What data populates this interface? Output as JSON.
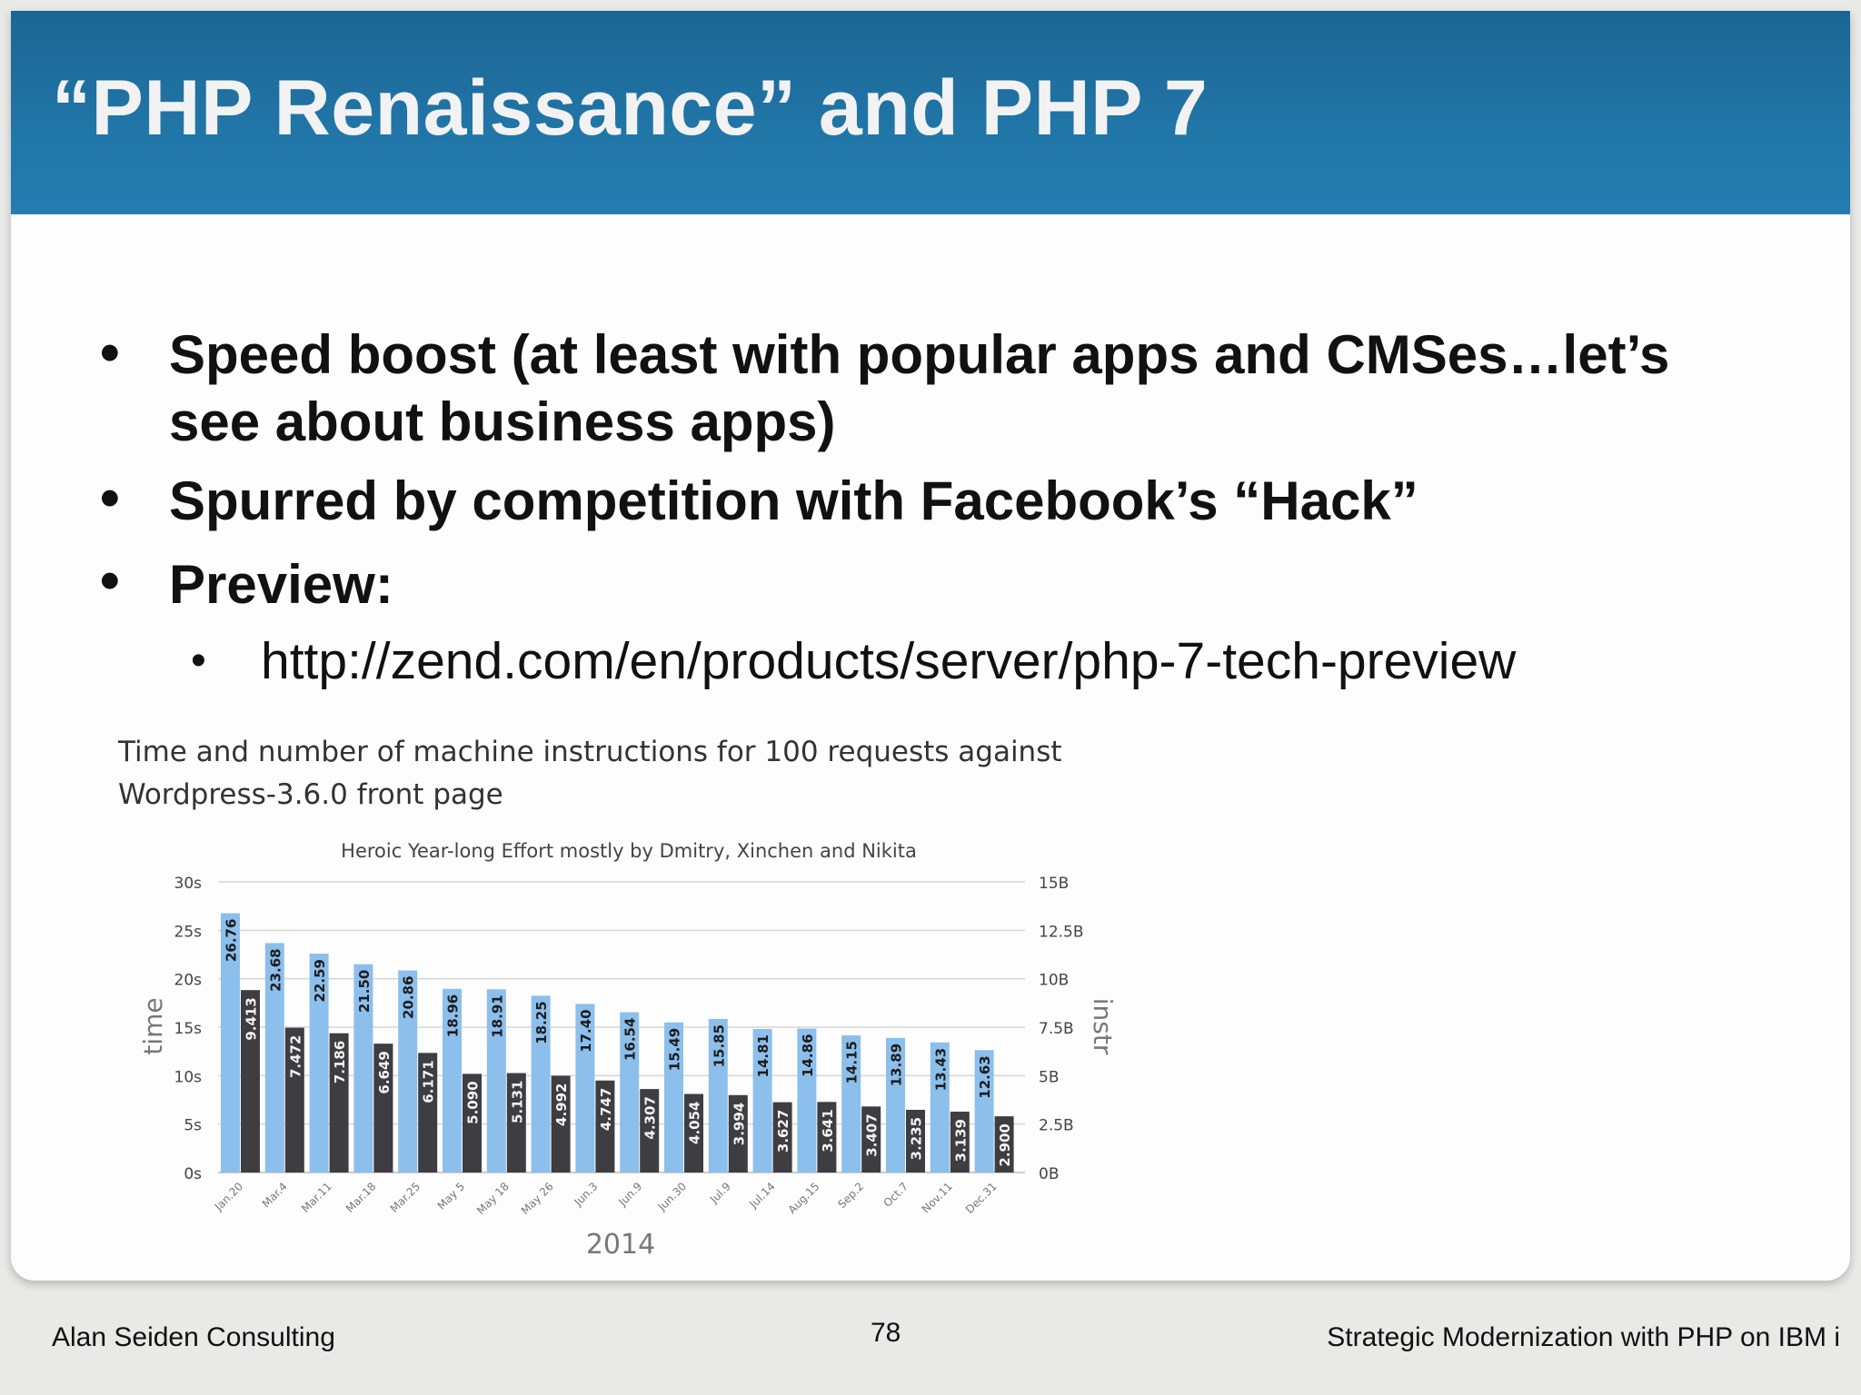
{
  "slide": {
    "title": "“PHP Renaissance” and PHP 7",
    "bullets": [
      "Speed boost (at least with popular apps and CMSes…let’s",
      "see about business apps)",
      "Spurred by competition with Facebook’s “Hack”",
      "Preview:"
    ],
    "sub_bullet": "http://zend.com/en/products/server/php-7-tech-preview",
    "bullet_glyph": "•"
  },
  "chart_caption": {
    "line1": "Time and number of machine instructions for 100 requests against",
    "line2": "Wordpress-3.6.0 front page"
  },
  "chart_data": {
    "type": "bar",
    "title": "Heroic Year-long Effort mostly by Dmitry, Xinchen and Nikita",
    "xlabel": "2014",
    "ylabel": "time",
    "y2label": "instr",
    "categories": [
      "Jan.20",
      "Mar.4",
      "Mar.11",
      "Mar.18",
      "Mar.25",
      "May 5",
      "May 18",
      "May 26",
      "Jun.3",
      "Jun.9",
      "Jun.30",
      "Jul.9",
      "Jul.14",
      "Aug.15",
      "Sep.2",
      "Oct.7",
      "Nov.11",
      "Dec.31"
    ],
    "series": [
      {
        "name": "time",
        "axis": "left",
        "color": "#8cbfec",
        "values": [
          26.76,
          23.68,
          22.59,
          21.5,
          20.86,
          18.96,
          18.91,
          18.25,
          17.4,
          16.54,
          15.49,
          15.85,
          14.81,
          14.86,
          14.15,
          13.89,
          13.43,
          12.63
        ],
        "labels": [
          "26.76",
          "23.68",
          "22.59",
          "21.50",
          "20.86",
          "18.96",
          "18.91",
          "18.25",
          "17.40",
          "16.54",
          "15.49",
          "15.85",
          "14.81",
          "14.86",
          "14.15",
          "13.89",
          "13.43",
          "12.63"
        ]
      },
      {
        "name": "instr",
        "axis": "right",
        "color": "#3d3d42",
        "values": [
          9.413,
          7.472,
          7.186,
          6.649,
          6.171,
          5.09,
          5.131,
          4.992,
          4.747,
          4.307,
          4.054,
          3.994,
          3.627,
          3.641,
          3.407,
          3.235,
          3.139,
          2.9
        ],
        "labels": [
          "9.413",
          "7.472",
          "7.186",
          "6.649",
          "6.171",
          "5.090",
          "5.131",
          "4.992",
          "4.747",
          "4.307",
          "4.054",
          "3.994",
          "3.627",
          "3.641",
          "3.407",
          "3.235",
          "3.139",
          "2.900"
        ]
      }
    ],
    "ylim": [
      0,
      30
    ],
    "y2lim": [
      0,
      15
    ],
    "yticks": [
      "0s",
      "5s",
      "10s",
      "15s",
      "20s",
      "25s",
      "30s"
    ],
    "y2ticks": [
      "0B",
      "2.5B",
      "5B",
      "7.5B",
      "10B",
      "12.5B",
      "15B"
    ],
    "grid": true
  },
  "footer": {
    "left": "Alan Seiden Consulting",
    "page_number": "78",
    "right": "Strategic Modernization with PHP on IBM i"
  }
}
